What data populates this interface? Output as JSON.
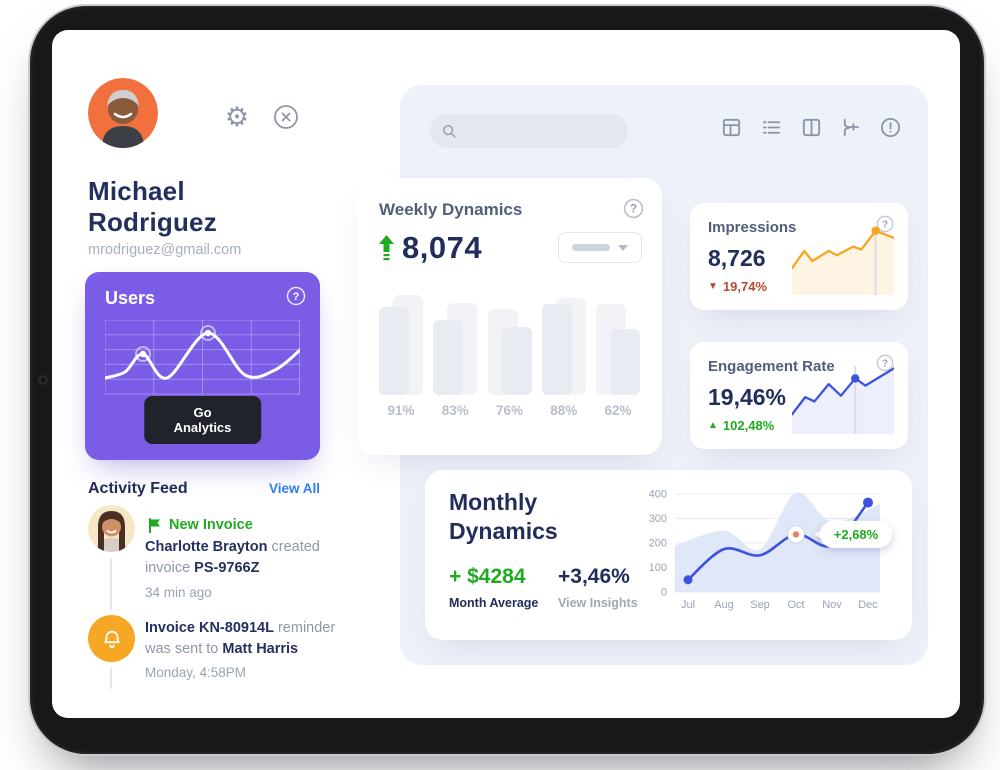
{
  "profile": {
    "name_line1": "Michael",
    "name_line2": "Rodriguez",
    "email": "mrodriguez@gmail.com"
  },
  "users_card": {
    "title": "Users",
    "button_label": "Go Analytics",
    "wave_points": [
      [
        0,
        58
      ],
      [
        20,
        52
      ],
      [
        38,
        34
      ],
      [
        62,
        58
      ],
      [
        103,
        13
      ],
      [
        140,
        55
      ],
      [
        170,
        50
      ],
      [
        195,
        30
      ]
    ],
    "dot_indices": [
      2,
      4
    ]
  },
  "activity": {
    "title": "Activity Feed",
    "view_all": "View All",
    "items": [
      {
        "label": "New Invoice",
        "name": "Charlotte Brayton",
        "mid": " created invoice ",
        "code": "PS-9766Z",
        "time": "34 min ago"
      },
      {
        "code": "Invoice KN-80914L",
        "mid1": " reminder was sent to ",
        "name": "Matt Harris",
        "time": "Monday, 4:58PM"
      }
    ]
  },
  "search": {
    "placeholder": ""
  },
  "weekly": {
    "title": "Weekly Dynamics",
    "value": "8,074",
    "delta_direction": "up",
    "bars": [
      {
        "label": "91%",
        "back": 100,
        "front": 88,
        "front_side": "left"
      },
      {
        "label": "83%",
        "back": 92,
        "front": 75,
        "front_side": "left"
      },
      {
        "label": "76%",
        "back": 86,
        "front": 68,
        "front_side": "right"
      },
      {
        "label": "88%",
        "back": 97,
        "front": 91,
        "front_side": "left"
      },
      {
        "label": "62%",
        "back": 91,
        "front": 66,
        "front_side": "right"
      }
    ]
  },
  "impressions": {
    "title": "Impressions",
    "value": "8,726",
    "delta": "19,74%",
    "direction": "down",
    "spark": {
      "points": [
        [
          0,
          60
        ],
        [
          12,
          36
        ],
        [
          20,
          50
        ],
        [
          36,
          36
        ],
        [
          44,
          42
        ],
        [
          60,
          30
        ],
        [
          68,
          34
        ],
        [
          82,
          8
        ],
        [
          100,
          18
        ]
      ],
      "marker": 7,
      "color": "#f6a623",
      "fill": "rgba(246,166,35,0.12)"
    }
  },
  "engagement": {
    "title": "Engagement Rate",
    "value": "19,46%",
    "delta": "102,48%",
    "direction": "up",
    "spark": {
      "points": [
        [
          0,
          70
        ],
        [
          13,
          46
        ],
        [
          22,
          52
        ],
        [
          36,
          28
        ],
        [
          48,
          44
        ],
        [
          62,
          20
        ],
        [
          72,
          30
        ],
        [
          100,
          6
        ]
      ],
      "marker": 5,
      "color": "#3d52e0",
      "fill": "rgba(80,100,230,0.10)"
    }
  },
  "monthly": {
    "title_line1": "Monthly",
    "title_line2": "Dynamics",
    "avg_value": "+ $4284",
    "avg_label": "Month Average",
    "pct_value": "+3,46%",
    "pct_label": "View Insights",
    "tooltip": "+2,68%",
    "chart": {
      "type": "line",
      "months": [
        "Jul",
        "Aug",
        "Sep",
        "Oct",
        "Nov",
        "Dec"
      ],
      "line_values": [
        50,
        175,
        150,
        235,
        190,
        365
      ],
      "area_values": [
        190,
        250,
        175,
        405,
        285,
        360
      ],
      "y_ticks": [
        400,
        300,
        200,
        100,
        0
      ],
      "y_max": 400,
      "marker_month": "Oct",
      "line_color": "#3d52e0",
      "area_color": "#dde4f8"
    }
  },
  "colors": {
    "accent_purple": "#7b5ce6",
    "navy": "#222d5a",
    "green": "#1faa1f",
    "red": "#b14a31",
    "orange": "#f6a623",
    "blue": "#3d52e0",
    "link_blue": "#2f80ed",
    "panel_bg": "#edf1f8"
  }
}
